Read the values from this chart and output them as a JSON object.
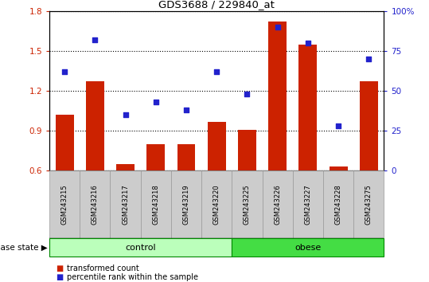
{
  "title": "GDS3688 / 229840_at",
  "samples": [
    "GSM243215",
    "GSM243216",
    "GSM243217",
    "GSM243218",
    "GSM243219",
    "GSM243220",
    "GSM243225",
    "GSM243226",
    "GSM243227",
    "GSM243228",
    "GSM243275"
  ],
  "transformed_count": [
    1.02,
    1.27,
    0.65,
    0.8,
    0.8,
    0.97,
    0.91,
    1.72,
    1.55,
    0.63,
    1.27
  ],
  "percentile_rank": [
    62,
    82,
    35,
    43,
    38,
    62,
    48,
    90,
    80,
    28,
    70
  ],
  "bar_color": "#cc2200",
  "dot_color": "#2222cc",
  "ylim_left": [
    0.6,
    1.8
  ],
  "ylim_right": [
    0,
    100
  ],
  "yticks_left": [
    0.6,
    0.9,
    1.2,
    1.5,
    1.8
  ],
  "ytick_labels_left": [
    "0.6",
    "0.9",
    "1.2",
    "1.5",
    "1.8"
  ],
  "yticks_right": [
    0,
    25,
    50,
    75,
    100
  ],
  "ytick_labels_right": [
    "0",
    "25",
    "50",
    "75",
    "100%"
  ],
  "groups": [
    {
      "label": "control",
      "n": 6,
      "color": "#bbffbb",
      "edge_color": "#008800"
    },
    {
      "label": "obese",
      "n": 5,
      "color": "#44dd44",
      "edge_color": "#008800"
    }
  ],
  "disease_state_label": "disease state",
  "legend_bar_label": "transformed count",
  "legend_dot_label": "percentile rank within the sample",
  "bg_color": "#cccccc",
  "plot_bg_color": "#ffffff"
}
